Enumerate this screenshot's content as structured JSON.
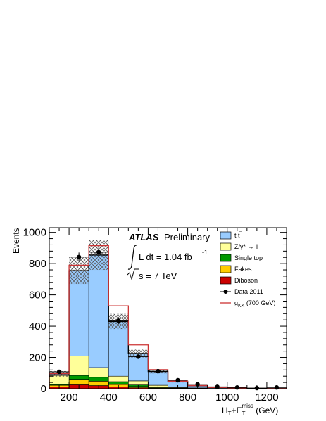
{
  "chart_data": {
    "type": "stacked-histogram",
    "experiment": "ATLAS",
    "status": "Preliminary",
    "luminosity_label": "L dt =  1.04  fb",
    "luminosity_exp": "-1",
    "energy_label": "s = 7 TeV",
    "ylabel": "Events",
    "xlabel_main": "H",
    "xlabel_sub1": "T",
    "xlabel_plus": "+E",
    "xlabel_sub2": "T",
    "xlabel_sup": "miss",
    "xlabel_units": " (GeV)",
    "xlim": [
      100,
      1300
    ],
    "ylim": [
      0,
      1030
    ],
    "xticks": [
      "200",
      "400",
      "600",
      "800",
      "1000",
      "1200"
    ],
    "xtick_values": [
      200,
      400,
      600,
      800,
      1000,
      1200
    ],
    "yticks": [
      "0",
      "200",
      "400",
      "600",
      "800",
      "1000"
    ],
    "ytick_values": [
      0,
      200,
      400,
      600,
      800,
      1000
    ],
    "bin_edges": [
      100,
      200,
      300,
      400,
      500,
      600,
      700,
      800,
      900,
      1000,
      1100,
      1200,
      1300
    ],
    "series": [
      {
        "key": "diboson",
        "color": "#cc0000",
        "values": [
          12,
          25,
          20,
          12,
          6,
          3,
          1,
          1,
          0,
          0,
          0,
          0
        ]
      },
      {
        "key": "fakes",
        "color": "#ffcc00",
        "values": [
          10,
          35,
          28,
          15,
          8,
          4,
          2,
          1,
          0,
          0,
          0,
          0
        ]
      },
      {
        "key": "singletop",
        "color": "#009900",
        "values": [
          5,
          25,
          25,
          18,
          10,
          5,
          2,
          1,
          1,
          0,
          0,
          0
        ]
      },
      {
        "key": "zgamma",
        "color": "#ffff99",
        "values": [
          58,
          125,
          62,
          35,
          26,
          10,
          4,
          2,
          1,
          0,
          0,
          0
        ]
      },
      {
        "key": "ttbar",
        "color": "#99ccff",
        "values": [
          10,
          545,
          720,
          350,
          175,
          88,
          36,
          14,
          5,
          3,
          1,
          1
        ]
      }
    ],
    "total_mc": [
      95,
      755,
      855,
      430,
      225,
      110,
      45,
      19,
      7,
      3,
      1,
      1
    ],
    "uncertainty": [
      18,
      85,
      95,
      48,
      25,
      12,
      5,
      3,
      1,
      1,
      0,
      0
    ],
    "signal_total": [
      96,
      790,
      915,
      530,
      280,
      122,
      48,
      20,
      8,
      4,
      2,
      1
    ],
    "data_x": [
      150,
      250,
      350,
      450,
      550,
      650,
      750,
      850,
      950,
      1050,
      1150,
      1250
    ],
    "data_y": [
      108,
      842,
      873,
      435,
      205,
      112,
      54,
      28,
      12,
      8,
      4,
      8
    ],
    "data_err": [
      10,
      29,
      30,
      21,
      14,
      11,
      7,
      5,
      3,
      3,
      2,
      3
    ],
    "legend": [
      {
        "key": "ttbar",
        "label": "t t",
        "style": "box",
        "color": "#99ccff"
      },
      {
        "key": "zgamma",
        "label": "Z/γ* → ll",
        "style": "box",
        "color": "#ffff99"
      },
      {
        "key": "singletop",
        "label": "Single top",
        "style": "box",
        "color": "#009900"
      },
      {
        "key": "fakes",
        "label": "Fakes",
        "style": "box",
        "color": "#ffcc00"
      },
      {
        "key": "diboson",
        "label": "Diboson",
        "style": "box",
        "color": "#cc0000"
      },
      {
        "key": "data",
        "label": "Data 2011",
        "style": "marker",
        "color": "#000000"
      },
      {
        "key": "signal",
        "label": "g",
        "label_sub": "KK",
        "label_after": " (700 GeV)",
        "style": "line",
        "color": "#cc3333"
      }
    ],
    "grid": false,
    "legend_position": "top-right"
  }
}
